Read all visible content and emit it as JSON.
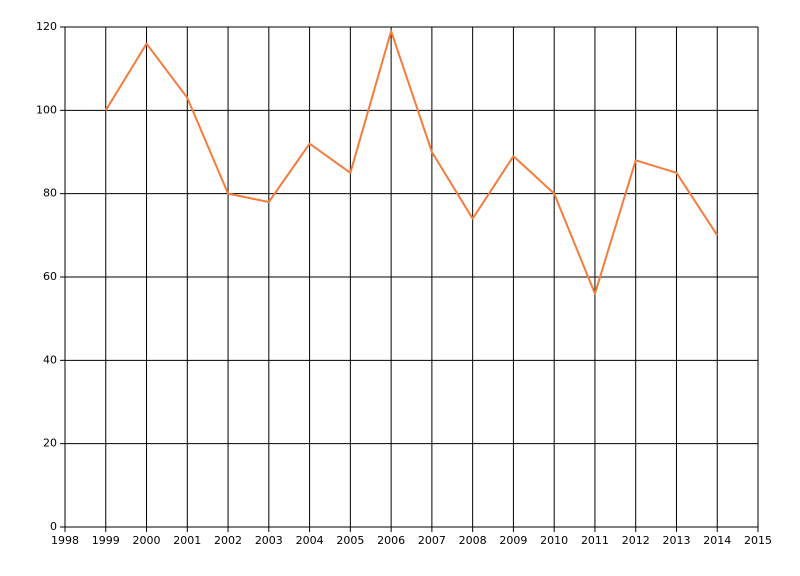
{
  "chart_data": {
    "type": "line",
    "x": [
      1999,
      2000,
      2001,
      2002,
      2003,
      2004,
      2005,
      2006,
      2007,
      2008,
      2009,
      2010,
      2011,
      2012,
      2013,
      2014
    ],
    "values": [
      100,
      116,
      103,
      80,
      78,
      92,
      85,
      119,
      90,
      74,
      89,
      80,
      56,
      88,
      85,
      70
    ],
    "color": "#f47c3c",
    "xlim": [
      1998,
      2015
    ],
    "xticks": [
      1998,
      1999,
      2000,
      2001,
      2002,
      2003,
      2004,
      2005,
      2006,
      2007,
      2008,
      2009,
      2010,
      2011,
      2012,
      2013,
      2014,
      2015
    ],
    "ylim": [
      0,
      120
    ],
    "yticks": [
      0,
      20,
      40,
      60,
      80,
      100,
      120
    ],
    "grid": true
  }
}
